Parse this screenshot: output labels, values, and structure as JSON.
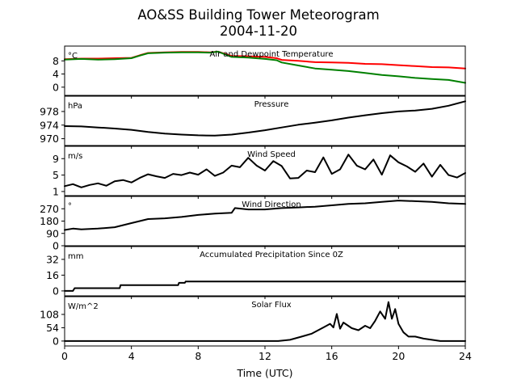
{
  "figure": {
    "title": "AO&SS Building Tower Meteorogram",
    "subtitle": "2004-11-20",
    "xlabel": "Time (UTC)",
    "xlim": [
      0,
      24
    ],
    "xticks": [
      0,
      4,
      8,
      12,
      16,
      20,
      24
    ]
  },
  "chart_data": [
    {
      "type": "line",
      "title": "Air and Dewpoint Temperature",
      "ylabel": "°C",
      "ylim": [
        -2.5,
        12.5
      ],
      "yticks": [
        0,
        4,
        8
      ],
      "x": [
        0,
        1,
        2,
        3,
        4,
        4.5,
        5,
        6,
        7,
        8,
        8.7,
        9.2,
        10,
        11,
        12,
        12.7,
        13,
        14,
        15,
        16,
        17,
        18,
        19,
        20,
        21,
        22,
        23,
        24
      ],
      "series": [
        {
          "color": "#ff0000",
          "values": [
            8.5,
            8.7,
            8.7,
            8.8,
            8.9,
            9.7,
            10.4,
            10.6,
            10.7,
            10.7,
            10.6,
            10.8,
            9.5,
            9.4,
            9.2,
            8.8,
            8.3,
            8.0,
            7.6,
            7.5,
            7.4,
            7.1,
            7.0,
            6.7,
            6.4,
            6.1,
            6.0,
            5.7
          ]
        },
        {
          "color": "#008000",
          "values": [
            8.4,
            8.6,
            8.4,
            8.5,
            8.8,
            9.6,
            10.3,
            10.5,
            10.6,
            10.6,
            10.5,
            10.8,
            9.2,
            9.0,
            8.6,
            8.2,
            7.5,
            6.6,
            5.7,
            5.3,
            4.9,
            4.3,
            3.7,
            3.3,
            2.8,
            2.5,
            2.2,
            1.3
          ]
        }
      ]
    },
    {
      "type": "line",
      "title": "Pressure",
      "ylabel": "hPa",
      "ylim": [
        968,
        982.5
      ],
      "yticks": [
        970,
        974,
        978
      ],
      "x": [
        0,
        1,
        2,
        3,
        4,
        5,
        6,
        7,
        8,
        9,
        10,
        11,
        12,
        13,
        14,
        15,
        16,
        17,
        18,
        19,
        20,
        21,
        22,
        23,
        24
      ],
      "series": [
        {
          "color": "#000000",
          "values": [
            973.7,
            973.6,
            973.3,
            973.0,
            972.6,
            972.0,
            971.5,
            971.2,
            971.0,
            970.9,
            971.2,
            971.8,
            972.5,
            973.3,
            974.1,
            974.7,
            975.4,
            976.2,
            976.9,
            977.5,
            978.0,
            978.3,
            978.8,
            979.7,
            981.0
          ]
        }
      ]
    },
    {
      "type": "line",
      "title": "Wind Speed",
      "ylabel": "m/s",
      "ylim": [
        0,
        12
      ],
      "yticks": [
        1,
        5,
        9
      ],
      "x": [
        0,
        0.5,
        1,
        1.5,
        2,
        2.5,
        3,
        3.5,
        4,
        4.5,
        5,
        5.5,
        6,
        6.5,
        7,
        7.5,
        8,
        8.5,
        9,
        9.5,
        10,
        10.5,
        11,
        11.5,
        12,
        12.5,
        13,
        13.5,
        14,
        14.5,
        15,
        15.5,
        16,
        16.5,
        17,
        17.5,
        18,
        18.5,
        19,
        19.5,
        20,
        20.5,
        21,
        21.5,
        22,
        22.5,
        23,
        23.5,
        24
      ],
      "series": [
        {
          "color": "#000000",
          "values": [
            2.3,
            2.8,
            2.0,
            2.6,
            3.0,
            2.4,
            3.5,
            3.8,
            3.2,
            4.3,
            5.2,
            4.7,
            4.3,
            5.3,
            5.0,
            5.6,
            5.1,
            6.4,
            4.8,
            5.6,
            7.3,
            6.9,
            9.2,
            7.3,
            6.1,
            8.4,
            7.2,
            4.2,
            4.3,
            6.1,
            5.7,
            9.3,
            5.3,
            6.4,
            10.0,
            7.3,
            6.4,
            8.8,
            5.1,
            9.8,
            8.1,
            7.1,
            5.8,
            7.8,
            4.6,
            7.5,
            5.0,
            4.4,
            5.5
          ]
        }
      ]
    },
    {
      "type": "line",
      "title": "Wind Direction",
      "ylabel": "°",
      "ylim": [
        0,
        360
      ],
      "yticks": [
        0,
        90,
        180,
        270
      ],
      "x": [
        0,
        0.5,
        1,
        2,
        3,
        4,
        5,
        6,
        7,
        8,
        9,
        10,
        10.2,
        11,
        12,
        13,
        14,
        15,
        16,
        17,
        18,
        19,
        20,
        21,
        22,
        23,
        24
      ],
      "series": [
        {
          "color": "#000000",
          "values": [
            115,
            125,
            120,
            125,
            135,
            165,
            195,
            200,
            210,
            225,
            235,
            240,
            275,
            265,
            265,
            275,
            280,
            285,
            295,
            305,
            310,
            320,
            330,
            325,
            320,
            310,
            305
          ]
        }
      ]
    },
    {
      "type": "line",
      "title": "Accumulated Precipitation Since 0Z",
      "ylabel": "mm",
      "ylim": [
        -5,
        45
      ],
      "yticks": [
        0,
        16,
        32
      ],
      "x": [
        0,
        0.5,
        0.6,
        3.3,
        3.35,
        6.8,
        6.85,
        7.2,
        7.25,
        24
      ],
      "series": [
        {
          "color": "#000000",
          "values": [
            0,
            0,
            2.8,
            2.8,
            5.8,
            5.8,
            8.2,
            8.2,
            9.6,
            9.6
          ]
        }
      ]
    },
    {
      "type": "line",
      "title": "Solar Flux",
      "ylabel": "W/m^2",
      "ylim": [
        -20,
        180
      ],
      "yticks": [
        0,
        54,
        108
      ],
      "x": [
        0,
        12.8,
        13.5,
        14.2,
        14.8,
        15.5,
        15.9,
        16.1,
        16.3,
        16.5,
        16.7,
        17.2,
        17.6,
        18.0,
        18.3,
        18.6,
        18.9,
        19.2,
        19.4,
        19.6,
        19.8,
        20.0,
        20.3,
        20.6,
        21.0,
        21.5,
        22.0,
        22.5,
        24
      ],
      "series": [
        {
          "color": "#000000",
          "values": [
            0,
            0,
            5,
            18,
            30,
            55,
            70,
            55,
            110,
            50,
            75,
            52,
            44,
            62,
            52,
            82,
            120,
            90,
            158,
            90,
            130,
            70,
            35,
            18,
            18,
            10,
            5,
            0,
            0
          ]
        }
      ]
    }
  ]
}
